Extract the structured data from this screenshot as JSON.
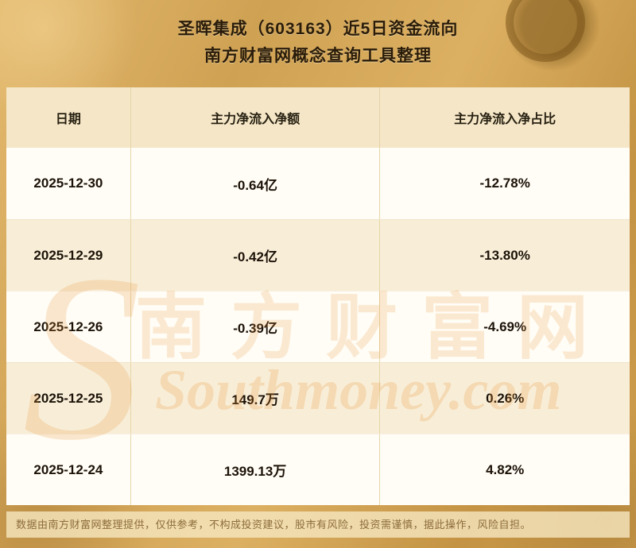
{
  "page": {
    "title_line1": "圣晖集成（603163）近5日资金流向",
    "title_line2": "南方财富网概念查询工具整理"
  },
  "chart_data": {
    "type": "table",
    "title": "圣晖集成（603163）近5日资金流向",
    "subtitle": "南方财富网概念查询工具整理",
    "columns": [
      "日期",
      "主力净流入净额",
      "主力净流入净占比"
    ],
    "rows": [
      [
        "2025-12-30",
        "-0.64亿",
        "-12.78%"
      ],
      [
        "2025-12-29",
        "-0.42亿",
        "-13.80%"
      ],
      [
        "2025-12-26",
        "-0.39亿",
        "-4.69%"
      ],
      [
        "2025-12-25",
        "149.7万",
        "0.26%"
      ],
      [
        "2025-12-24",
        "1399.13万",
        "4.82%"
      ]
    ]
  },
  "watermark": {
    "initial": "S",
    "cn": "南方财富网",
    "en": "Southmoney.com"
  },
  "footer": {
    "disclaimer": "数据由南方财富网整理提供，仅供参考，不构成投资建议，股市有风险，投资需谨慎，据此操作，风险自担。"
  },
  "colors": {
    "background_gold": "#cfa153",
    "header_row_bg": "#f4e6c6",
    "row_bg": "#fffdf6",
    "row_alt_bg": "#f8eed8",
    "text": "#1c1208",
    "watermark": "#e9983c",
    "footer_text": "#8d6d3c"
  }
}
